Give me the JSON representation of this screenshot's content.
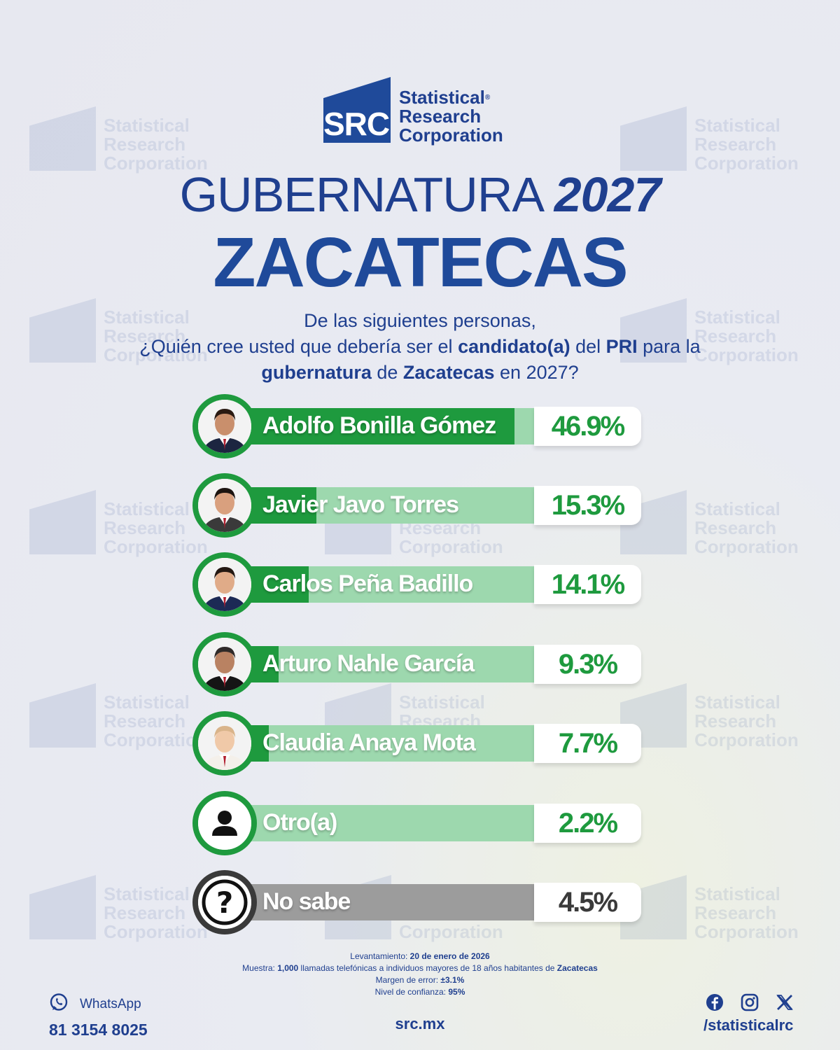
{
  "brand": {
    "logo_mark": "SRC",
    "line1": "Statistical",
    "line2": "Research",
    "line3": "Corporation",
    "registered": "®",
    "brand_color": "#1f4a9a"
  },
  "title": {
    "prefix": "GUBERNATURA",
    "year": "2027",
    "state": "ZACATECAS"
  },
  "question": {
    "line1": "De las siguientes personas,",
    "l2_a": "¿Quién cree usted que debería ser el ",
    "l2_b": "candidato(a)",
    "l2_c": " del ",
    "l2_d": "PRI",
    "l2_e": " para la",
    "l3_a": "gubernatura",
    "l3_b": " de ",
    "l3_c": "Zacatecas",
    "l3_d": " en 2027?"
  },
  "chart_data": {
    "type": "bar",
    "orientation": "horizontal",
    "categories": [
      "Adolfo Bonilla Gómez",
      "Javier Javo Torres",
      "Carlos Peña Badillo",
      "Arturo Nahle García",
      "Claudia Anaya Mota",
      "Otro(a)",
      "No sabe"
    ],
    "values": [
      46.9,
      15.3,
      14.1,
      9.3,
      7.7,
      2.2,
      4.5
    ],
    "value_labels": [
      "46.9%",
      "15.3%",
      "14.1%",
      "9.3%",
      "7.7%",
      "2.2%",
      "4.5%"
    ],
    "icons": [
      "person-photo-icon",
      "person-photo-icon",
      "person-photo-icon",
      "person-photo-icon",
      "person-photo-icon",
      "person-silhouette-icon",
      "question-mark-icon"
    ],
    "colors": {
      "bar": "#1e9a3e",
      "bar_track": "#9dd8ae",
      "no_sabe_bar": "#3a3a3a",
      "no_sabe_track": "#9c9c9c"
    },
    "xlim": [
      0,
      50
    ]
  },
  "footnote": {
    "l1_label": "Levantamiento: ",
    "l1_value": "20 de enero de 2026",
    "l2_a": "Muestra: ",
    "l2_b": "1,000",
    "l2_c": " llamadas telefónicas a individuos mayores de 18 años habitantes de ",
    "l2_d": "Zacatecas",
    "l3_label": "Margen de error: ",
    "l3_value": "±3.1%",
    "l4_label": "Nivel de confianza: ",
    "l4_value": "95%"
  },
  "contact": {
    "whatsapp_label": "WhatsApp",
    "whatsapp_number": "81 3154 8025",
    "website": "src.mx",
    "social_handle": "/statisticalrc",
    "social_icons": [
      "facebook-icon",
      "instagram-icon",
      "x-icon"
    ]
  }
}
